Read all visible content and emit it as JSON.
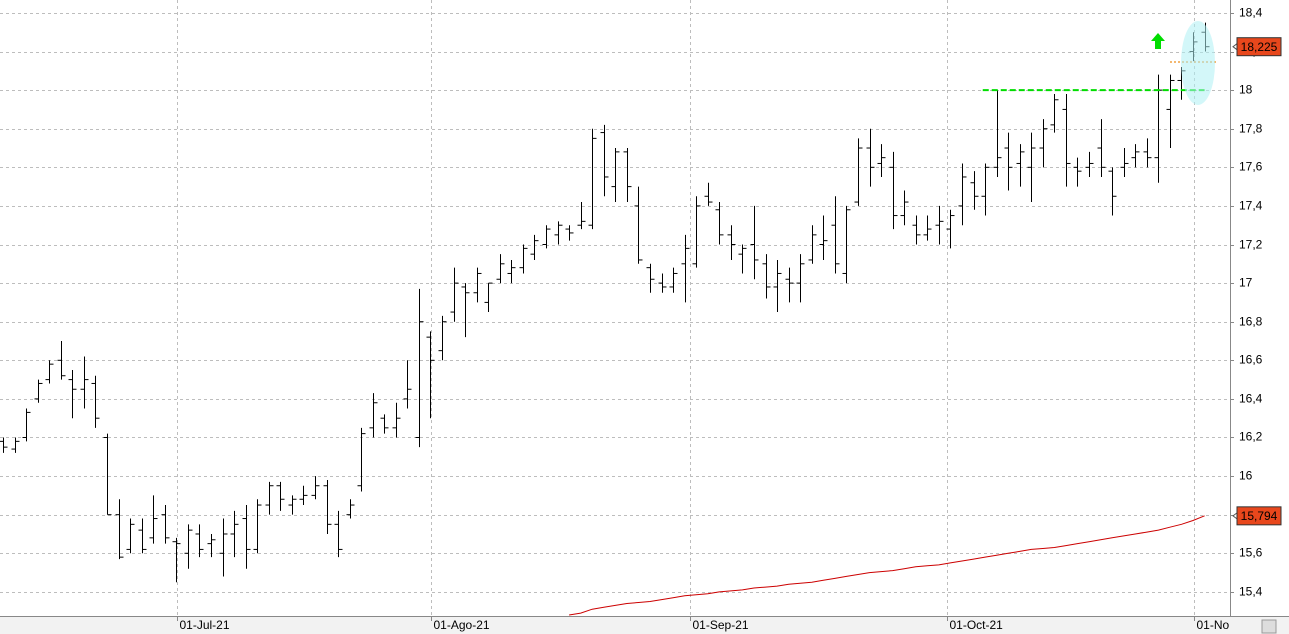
{
  "chart_data": {
    "type": "ohlc",
    "xlim": [
      -0.26,
      106.2
    ],
    "ylim": [
      15.275,
      18.467
    ],
    "grid": true,
    "bar_color": "#000000",
    "xticks": [
      {
        "value": 15.06,
        "label": "01-Jul-21"
      },
      {
        "value": 37.06,
        "label": "01-Ago-21"
      },
      {
        "value": 59.5,
        "label": "01-Sep-21"
      },
      {
        "value": 81.7,
        "label": "01-Oct-21"
      },
      {
        "value": 103.1,
        "label": "01-No"
      }
    ],
    "yticks": [
      {
        "value": 15.4,
        "label": "15,4"
      },
      {
        "value": 15.6,
        "label": "15,6"
      },
      {
        "value": 15.8,
        "label": "15,8"
      },
      16,
      {
        "value": 16.2,
        "label": "16,2"
      },
      {
        "value": 16.4,
        "label": "16,4"
      },
      {
        "value": 16.6,
        "label": "16,6"
      },
      {
        "value": 16.8,
        "label": "16,8"
      },
      17,
      {
        "value": 17.2,
        "label": "17,2"
      },
      {
        "value": 17.4,
        "label": "17,4"
      },
      {
        "value": 17.6,
        "label": "17,6"
      },
      {
        "value": 17.8,
        "label": "17,8"
      },
      18,
      {
        "value": 18.2,
        "label": "18,2"
      },
      {
        "value": 18.4,
        "label": "18,4"
      }
    ],
    "x": [
      0,
      1,
      2,
      3,
      4,
      5,
      6,
      7,
      8,
      9,
      10,
      11,
      12,
      13,
      14,
      15,
      16,
      17,
      18,
      19,
      20,
      21,
      22,
      23,
      24,
      25,
      26,
      27,
      28,
      29,
      30,
      31,
      32,
      33,
      34,
      35,
      36,
      37,
      38,
      39,
      40,
      41,
      42,
      43,
      44,
      45,
      46,
      47,
      48,
      49,
      50,
      51,
      52,
      53,
      54,
      55,
      56,
      57,
      58,
      59,
      60,
      61,
      62,
      63,
      64,
      65,
      66,
      67,
      68,
      69,
      70,
      71,
      72,
      73,
      74,
      75,
      76,
      77,
      78,
      79,
      80,
      81,
      82,
      83,
      84,
      85,
      86,
      87,
      88,
      89,
      90,
      91,
      92,
      93,
      94,
      95,
      96,
      97,
      98,
      99,
      100,
      101,
      102,
      103,
      104
    ],
    "open": [
      16.18,
      16.14,
      16.2,
      16.4,
      16.5,
      16.6,
      16.5,
      16.45,
      16.48,
      16.2,
      15.8,
      15.62,
      15.72,
      15.68,
      15.8,
      15.66,
      15.6,
      15.7,
      15.65,
      15.6,
      15.7,
      15.78,
      15.62,
      15.85,
      15.95,
      15.85,
      15.88,
      15.9,
      15.95,
      15.75,
      15.8,
      15.95,
      16.25,
      16.3,
      16.25,
      16.4,
      16.2,
      16.72,
      16.65,
      16.85,
      16.98,
      16.95,
      16.9,
      17.02,
      17.05,
      17.08,
      17.15,
      17.2,
      17.25,
      17.28,
      17.3,
      17.3,
      17.78,
      17.5,
      17.68,
      17.4,
      17.08,
      17.0,
      16.98,
      17.1,
      17.1,
      17.45,
      17.38,
      17.25,
      17.15,
      17.2,
      17.1,
      16.98,
      17.02,
      17.0,
      17.12,
      17.2,
      17.3,
      17.05,
      17.42,
      17.7,
      17.62,
      17.6,
      17.35,
      17.3,
      17.25,
      17.3,
      17.28,
      17.4,
      17.52,
      17.45,
      17.6,
      17.7,
      17.62,
      17.6,
      17.7,
      17.82,
      17.9,
      17.6,
      17.6,
      17.7,
      17.58,
      17.6,
      17.65,
      17.68,
      17.65,
      17.9,
      18.05,
      18.2,
      18.3
    ],
    "high": [
      16.2,
      16.2,
      16.35,
      16.5,
      16.6,
      16.7,
      16.55,
      16.62,
      16.52,
      16.22,
      15.88,
      15.78,
      15.78,
      15.9,
      15.85,
      15.68,
      15.75,
      15.75,
      15.7,
      15.78,
      15.82,
      15.85,
      15.88,
      15.97,
      15.97,
      15.9,
      15.95,
      16.0,
      15.98,
      15.82,
      15.88,
      16.25,
      16.43,
      16.32,
      16.38,
      16.6,
      16.97,
      16.75,
      16.83,
      17.08,
      17.0,
      17.08,
      17.0,
      17.15,
      17.12,
      17.2,
      17.25,
      17.3,
      17.32,
      17.3,
      17.42,
      17.8,
      17.82,
      17.7,
      17.7,
      17.5,
      17.1,
      17.05,
      17.08,
      17.25,
      17.45,
      17.52,
      17.42,
      17.3,
      17.2,
      17.4,
      17.15,
      17.12,
      17.08,
      17.15,
      17.3,
      17.35,
      17.45,
      17.4,
      17.75,
      17.8,
      17.72,
      17.68,
      17.48,
      17.35,
      17.35,
      17.4,
      17.38,
      17.62,
      17.58,
      17.62,
      18.0,
      17.78,
      17.72,
      17.78,
      17.85,
      17.98,
      17.98,
      17.65,
      17.68,
      17.85,
      17.6,
      17.7,
      17.72,
      17.75,
      18.08,
      18.08,
      18.12,
      18.3,
      18.35
    ],
    "low": [
      16.12,
      16.12,
      16.18,
      16.38,
      16.48,
      16.5,
      16.3,
      16.35,
      16.25,
      15.8,
      15.57,
      15.6,
      15.6,
      15.65,
      15.65,
      15.45,
      15.52,
      15.58,
      15.58,
      15.48,
      15.58,
      15.52,
      15.6,
      15.8,
      15.82,
      15.8,
      15.85,
      15.88,
      15.7,
      15.58,
      15.78,
      15.92,
      16.2,
      16.22,
      16.2,
      16.35,
      16.15,
      16.3,
      16.6,
      16.8,
      16.72,
      16.9,
      16.85,
      17.0,
      17.0,
      17.05,
      17.12,
      17.18,
      17.2,
      17.22,
      17.28,
      17.28,
      17.45,
      17.42,
      17.42,
      17.1,
      16.95,
      16.95,
      16.95,
      16.9,
      17.08,
      17.4,
      17.2,
      17.12,
      17.05,
      17.02,
      16.92,
      16.85,
      16.9,
      16.9,
      17.1,
      17.12,
      17.05,
      17.0,
      17.4,
      17.5,
      17.55,
      17.28,
      17.3,
      17.2,
      17.22,
      17.2,
      17.18,
      17.3,
      17.38,
      17.35,
      17.55,
      17.48,
      17.5,
      17.42,
      17.6,
      17.78,
      17.5,
      17.5,
      17.55,
      17.55,
      17.35,
      17.55,
      17.6,
      17.6,
      17.52,
      17.7,
      17.95,
      18.15,
      18.2
    ],
    "close": [
      16.15,
      16.18,
      16.33,
      16.48,
      16.58,
      16.52,
      16.45,
      16.5,
      16.3,
      15.8,
      15.58,
      15.75,
      15.62,
      15.78,
      15.68,
      15.65,
      15.72,
      15.62,
      15.67,
      15.7,
      15.75,
      15.62,
      15.85,
      15.95,
      15.88,
      15.88,
      15.9,
      15.95,
      15.75,
      15.62,
      15.85,
      16.22,
      16.38,
      16.25,
      16.3,
      16.45,
      16.8,
      16.6,
      16.8,
      17.0,
      16.95,
      17.05,
      17.0,
      17.1,
      17.08,
      17.18,
      17.22,
      17.28,
      17.3,
      17.26,
      17.32,
      17.75,
      17.55,
      17.68,
      17.5,
      17.12,
      17.02,
      16.98,
      17.05,
      17.18,
      17.4,
      17.42,
      17.25,
      17.2,
      17.18,
      17.12,
      16.98,
      17.05,
      17.0,
      17.1,
      17.25,
      17.22,
      17.1,
      17.38,
      17.7,
      17.6,
      17.65,
      17.35,
      17.42,
      17.25,
      17.28,
      17.32,
      17.35,
      17.55,
      17.45,
      17.6,
      17.65,
      17.6,
      17.68,
      17.7,
      17.8,
      17.95,
      17.62,
      17.58,
      17.62,
      17.6,
      17.45,
      17.62,
      17.68,
      17.65,
      18.0,
      18.05,
      18.1,
      18.25,
      18.225
    ],
    "ma": {
      "color": "#cc0000",
      "values": [
        null,
        null,
        null,
        null,
        null,
        null,
        null,
        null,
        null,
        null,
        null,
        null,
        null,
        null,
        null,
        null,
        null,
        null,
        null,
        null,
        null,
        null,
        null,
        null,
        null,
        null,
        null,
        null,
        null,
        null,
        null,
        null,
        null,
        null,
        null,
        null,
        null,
        null,
        null,
        null,
        null,
        null,
        null,
        null,
        null,
        null,
        null,
        null,
        null,
        15.28,
        15.29,
        15.31,
        15.32,
        15.33,
        15.34,
        15.345,
        15.35,
        15.36,
        15.37,
        15.38,
        15.385,
        15.39,
        15.4,
        15.405,
        15.41,
        15.42,
        15.425,
        15.43,
        15.44,
        15.445,
        15.45,
        15.46,
        15.47,
        15.48,
        15.49,
        15.5,
        15.505,
        15.51,
        15.52,
        15.53,
        15.535,
        15.54,
        15.55,
        15.56,
        15.57,
        15.58,
        15.59,
        15.6,
        15.61,
        15.62,
        15.625,
        15.63,
        15.64,
        15.65,
        15.66,
        15.67,
        15.68,
        15.69,
        15.7,
        15.71,
        15.72,
        15.735,
        15.75,
        15.77,
        15.794
      ]
    },
    "resistance": {
      "value": 18,
      "start": 84.8,
      "end": 104,
      "color": "#00dd00"
    },
    "price_labels": [
      {
        "value": 18.225,
        "label": "18,225",
        "color": "#e8471c"
      },
      {
        "value": 15.794,
        "label": "15,794",
        "color": "#e8471c"
      }
    ]
  }
}
